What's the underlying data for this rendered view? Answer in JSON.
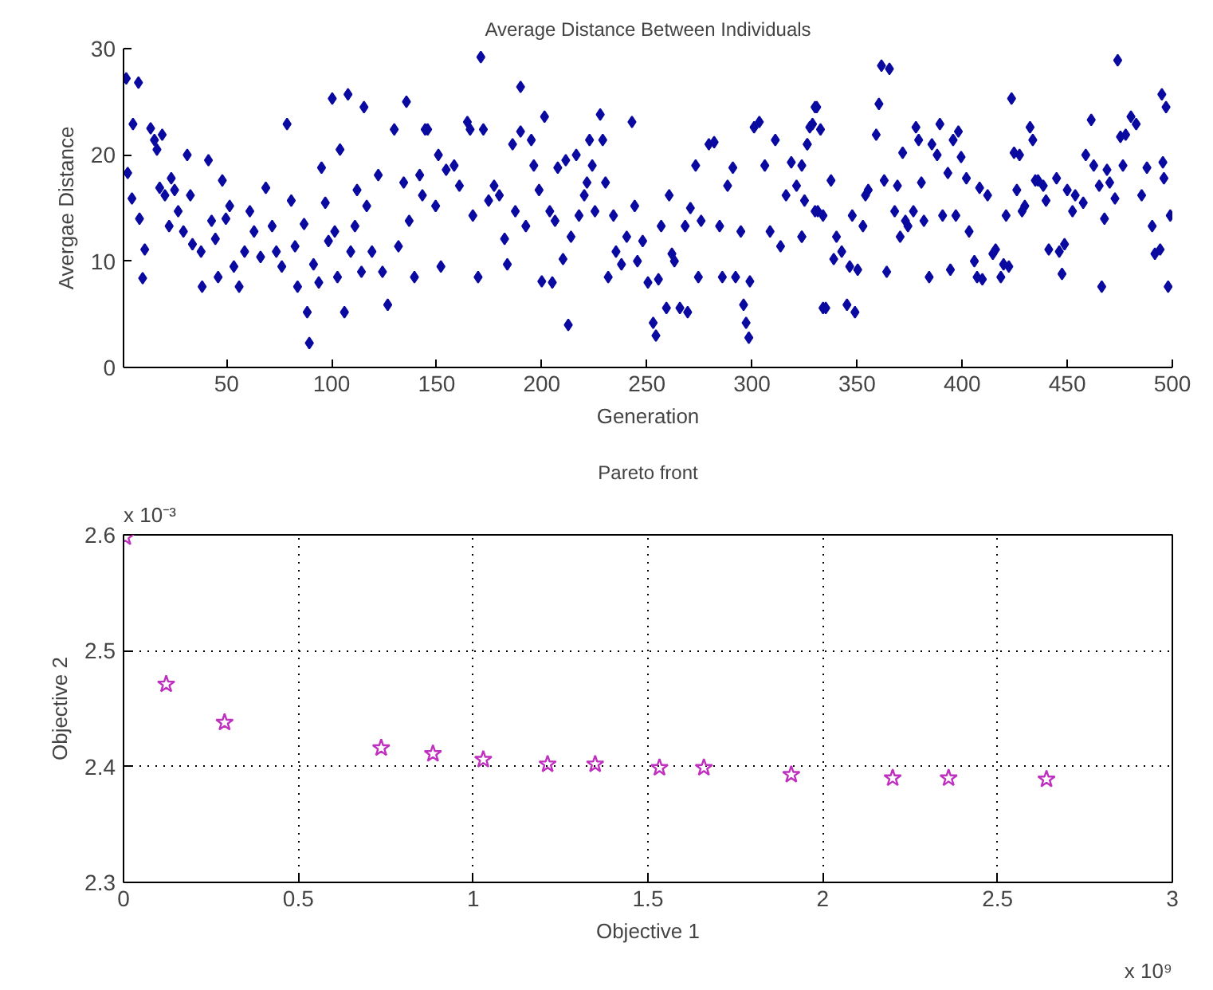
{
  "chart_data": [
    {
      "type": "scatter",
      "title": "Average Distance Between Individuals",
      "xlabel": "Generation",
      "ylabel": "Avergae Distance",
      "marker": "diamond",
      "grid": false,
      "xlim": [
        1,
        500
      ],
      "ylim": [
        0,
        30
      ],
      "xticks": [
        50,
        100,
        150,
        200,
        250,
        300,
        350,
        400,
        450,
        500
      ],
      "yticks": [
        0,
        10,
        20,
        30
      ],
      "series": [
        {
          "color": "#0a0aa0",
          "x": [
            2.3,
            8.1,
            5.5,
            3,
            5,
            8.6,
            11.1,
            10.1,
            13.9,
            15.7,
            16.9,
            19.4,
            18.2,
            20.7,
            22.7,
            23.7,
            25.3,
            27,
            29.5,
            31.3,
            32.8,
            33.8,
            37.9,
            38.4,
            41.4,
            42.9,
            44.7,
            46,
            48,
            49.7,
            51.5,
            53.5,
            56,
            58.6,
            61.1,
            63.1,
            66.2,
            68.7,
            71.7,
            73.7,
            76.3,
            78.8,
            80.8,
            82.6,
            83.8,
            86.9,
            88.4,
            89.4,
            91.4,
            93.9,
            95.2,
            97,
            98.5,
            100.3,
            101.5,
            102.8,
            104,
            106.1,
            107.8,
            109.1,
            111.1,
            112.1,
            114.2,
            115.4,
            116.7,
            119.2,
            122.2,
            124.2,
            126.7,
            129.8,
            131.8,
            134.3,
            135.6,
            136.9,
            139.4,
            143.2,
            144.5,
            171,
            189.9,
            145.7,
            141.9,
            149.5,
            150.8,
            152,
            154.5,
            158.3,
            160.8,
            164.6,
            165.9,
            167.2,
            169.7,
            172.2,
            174.7,
            177.3,
            179.8,
            182.3,
            183.6,
            186.1,
            187.4,
            189.9,
            192.4,
            195,
            196.2,
            198.7,
            200,
            201.3,
            203.8,
            205,
            206.3,
            207.6,
            210.1,
            211.4,
            212.6,
            213.9,
            216.4,
            217.7,
            220.2,
            221.5,
            222.7,
            224,
            225.3,
            227.8,
            229,
            230.3,
            231.6,
            234.1,
            235.3,
            237.9,
            240.4,
            242.9,
            244.2,
            245.5,
            248,
            250.5,
            253,
            254.3,
            255.5,
            256.8,
            259.3,
            260.6,
            261.9,
            263.1,
            265.7,
            268.2,
            269.4,
            270.7,
            273.2,
            274.5,
            275.8,
            279.5,
            282,
            284.6,
            285.9,
            288.4,
            290.9,
            292.2,
            294.7,
            296,
            297.2,
            298.5,
            299,
            301,
            303.5,
            306.1,
            308.6,
            311.1,
            313.6,
            316.2,
            318.7,
            321.2,
            323.7,
            326.3,
            328.8,
            330,
            331.3,
            333.8,
            323.7,
            325,
            323.7,
            326.3,
            327.5,
            330.8,
            332.6,
            330,
            333.8,
            337.6,
            338.9,
            340.2,
            342.7,
            346.5,
            350.3,
            335.1,
            345.2,
            349,
            347.7,
            352.8,
            354,
            355.3,
            359.1,
            360.4,
            361.6,
            365.4,
            362.9,
            364.1,
            367.9,
            369.2,
            370.5,
            371.7,
            373,
            374.2,
            376.8,
            378,
            379.3,
            380.6,
            381.8,
            384.3,
            385.6,
            388.1,
            389.4,
            390.7,
            393.2,
            394.4,
            395.7,
            397,
            398.2,
            399.5,
            402,
            403.3,
            405.8,
            407.1,
            408.3,
            409.6,
            412.1,
            414.6,
            415.9,
            418.4,
            419.7,
            420.9,
            422.2,
            423.5,
            424.7,
            426,
            427.3,
            428.5,
            429.8,
            432.3,
            433.6,
            434.8,
            436.1,
            438.6,
            439.9,
            441.2,
            444.9,
            446.2,
            447.5,
            448.7,
            450,
            452.5,
            453.8,
            457.6,
            458.8,
            461.4,
            462.6,
            465.2,
            466.4,
            467.7,
            468.9,
            470.2,
            472.7,
            474,
            475.3,
            476.5,
            477.8,
            480.3,
            482.8,
            485.4,
            487.9,
            490.4,
            491.7,
            494.2,
            495.5,
            495,
            496,
            497,
            498,
            499
          ],
          "values": [
            27.2,
            26.8,
            22.9,
            18.3,
            15.9,
            14,
            11.1,
            8.4,
            22.5,
            21.4,
            20.5,
            21.9,
            16.9,
            16.2,
            13.3,
            17.8,
            16.7,
            14.7,
            12.8,
            20,
            16.2,
            11.6,
            10.9,
            7.6,
            19.5,
            13.8,
            12.1,
            8.5,
            17.6,
            14,
            15.2,
            9.5,
            7.6,
            10.9,
            14.7,
            12.8,
            10.4,
            16.9,
            13.3,
            10.9,
            9.5,
            22.9,
            15.7,
            11.4,
            7.6,
            13.5,
            5.2,
            2.3,
            9.7,
            8,
            18.8,
            15.5,
            11.9,
            25.3,
            12.8,
            8.5,
            20.5,
            5.2,
            25.7,
            10.9,
            13.3,
            16.7,
            9,
            24.5,
            15.2,
            10.9,
            18.1,
            9,
            5.9,
            22.4,
            11.4,
            17.4,
            25,
            13.8,
            8.5,
            16.2,
            22.4,
            29.2,
            26.4,
            22.4,
            18.1,
            15.2,
            20,
            9.5,
            18.6,
            19,
            17.1,
            23.1,
            22.4,
            14.3,
            8.5,
            22.4,
            15.7,
            17.1,
            16.2,
            12.1,
            9.7,
            21,
            14.7,
            22.2,
            13.3,
            21.4,
            19,
            16.7,
            8.1,
            23.6,
            14.7,
            8,
            13.8,
            18.8,
            10.2,
            19.5,
            4,
            12.3,
            20,
            14.3,
            16.2,
            17.4,
            21.4,
            19,
            14.7,
            23.8,
            21.4,
            17.4,
            8.5,
            14.3,
            10.9,
            9.7,
            12.3,
            23.1,
            15.2,
            10,
            11.9,
            8,
            4.2,
            3,
            8.3,
            13.3,
            5.6,
            16.2,
            10.7,
            10,
            5.6,
            13.3,
            5.2,
            15,
            19,
            8.5,
            13.8,
            21,
            21.2,
            13.3,
            8.5,
            17.1,
            18.8,
            8.5,
            12.8,
            5.9,
            4.2,
            2.8,
            8.1,
            22.6,
            23.1,
            19,
            12.8,
            21.4,
            11.4,
            16.2,
            19.3,
            17.1,
            12.3,
            21,
            22.9,
            24.5,
            14.7,
            5.6,
            19,
            15.7,
            12.3,
            21,
            22.6,
            24.5,
            22.4,
            14.7,
            14.3,
            17.6,
            10.2,
            12.3,
            10.9,
            9.5,
            9.2,
            5.6,
            5.9,
            5.2,
            14.3,
            13.3,
            16.2,
            16.7,
            21.9,
            24.8,
            28.4,
            28.1,
            17.6,
            9,
            14.7,
            17.1,
            12.3,
            20.2,
            13.8,
            13.3,
            14.7,
            22.6,
            21.4,
            17.4,
            13.8,
            8.5,
            21,
            20,
            22.9,
            14.3,
            18.3,
            9.2,
            21.4,
            14.3,
            22.2,
            19.8,
            17.8,
            12.8,
            10,
            8.5,
            16.9,
            8.3,
            16.2,
            10.7,
            11.1,
            8.5,
            9.7,
            14.3,
            9.5,
            25.3,
            20.2,
            16.7,
            20,
            14.7,
            15.2,
            22.6,
            21.4,
            17.6,
            17.6,
            17.1,
            15.7,
            11.1,
            17.8,
            10.9,
            8.8,
            11.6,
            16.7,
            14.7,
            16.2,
            15.5,
            20,
            23.3,
            19,
            17.1,
            7.6,
            14,
            18.6,
            17.4,
            15.9,
            28.9,
            21.7,
            19,
            21.9,
            23.6,
            22.9,
            16.2,
            18.8,
            13.3,
            10.7,
            11.1,
            19.3,
            25.7,
            17.8,
            24.5,
            7.6,
            14.3
          ]
        }
      ]
    },
    {
      "type": "scatter",
      "title": "Pareto front",
      "xlabel": "Objective 1",
      "ylabel": "Objective 2",
      "marker": "star",
      "grid": true,
      "xlim": [
        0,
        3
      ],
      "ylim": [
        2.3,
        2.6
      ],
      "xticks": [
        0,
        0.5,
        1,
        1.5,
        2,
        2.5,
        3
      ],
      "yticks": [
        2.3,
        2.4,
        2.5,
        2.6
      ],
      "annotations": [
        "x 10⁻³",
        "x 10⁹"
      ],
      "series": [
        {
          "color": "#c030c0",
          "x": [
            0.005,
            0.122,
            0.289,
            0.737,
            0.885,
            1.029,
            1.213,
            1.349,
            1.533,
            1.66,
            1.91,
            2.2,
            2.36,
            2.64
          ],
          "values": [
            2.598,
            2.471,
            2.438,
            2.416,
            2.411,
            2.406,
            2.402,
            2.402,
            2.399,
            2.399,
            2.393,
            2.39,
            2.39,
            2.389
          ]
        }
      ]
    }
  ]
}
